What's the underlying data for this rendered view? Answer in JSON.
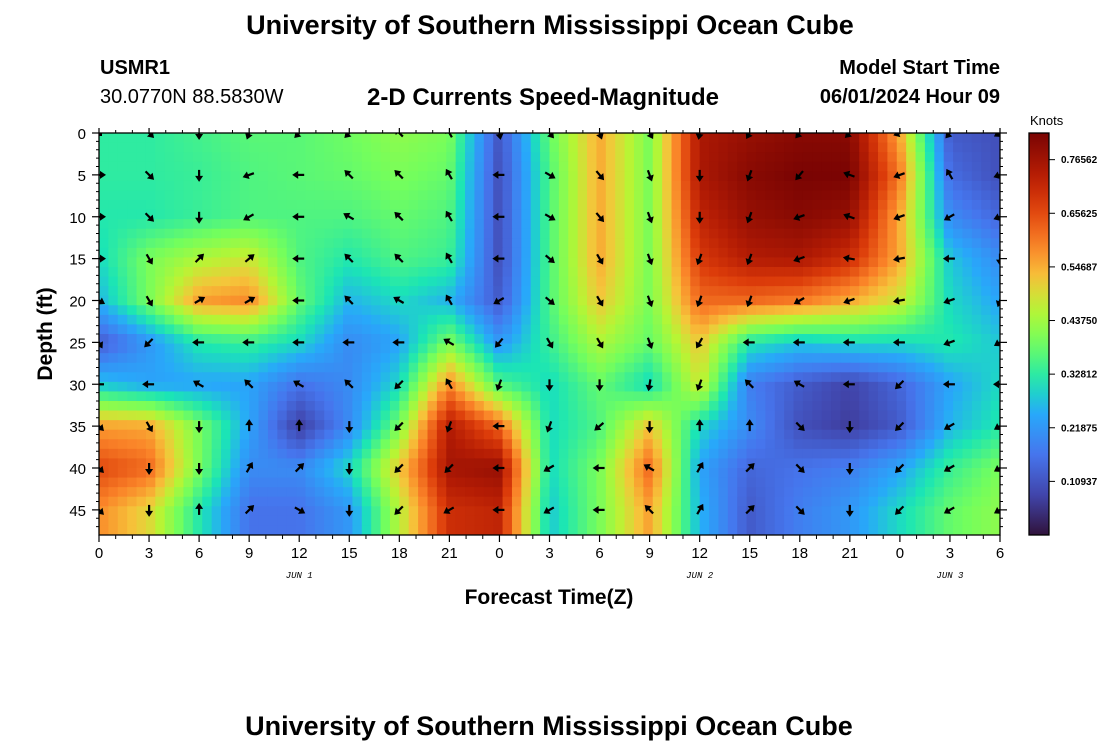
{
  "header": {
    "title": "University of Southern Mississippi Ocean Cube",
    "station_id": "USMR1",
    "coordinates": "30.0770N  88.5830W",
    "plot_title": "2-D Currents Speed-Magnitude",
    "model_start_label": "Model Start Time",
    "model_start_value": "06/01/2024 Hour 09"
  },
  "footer": {
    "title": "University of Southern Mississippi Ocean Cube"
  },
  "chart_data": {
    "type": "heatmap",
    "title": "2-D Currents Speed-Magnitude",
    "xlabel": "Forecast Time(Z)",
    "ylabel": "Depth (ft)",
    "x_hours": [
      0,
      3,
      6,
      9,
      12,
      15,
      18,
      21,
      24,
      27,
      30,
      33,
      36,
      39,
      42,
      45,
      48,
      51,
      54
    ],
    "x_tick_labels": [
      "0",
      "3",
      "6",
      "9",
      "12",
      "15",
      "18",
      "21",
      "0",
      "3",
      "6",
      "9",
      "12",
      "15",
      "18",
      "21",
      "0",
      "3",
      "6"
    ],
    "date_labels": [
      {
        "hour": 12,
        "label": "JUN 1"
      },
      {
        "hour": 36,
        "label": "JUN 2"
      },
      {
        "hour": 51,
        "label": "JUN 3"
      }
    ],
    "depths_ft": [
      0,
      5,
      10,
      15,
      20,
      25,
      30,
      35,
      40,
      45
    ],
    "ylim": [
      0,
      48
    ],
    "y_ticks": [
      0,
      5,
      10,
      15,
      20,
      25,
      30,
      35,
      40,
      45
    ],
    "colorbar": {
      "label": "Knots",
      "min": 0,
      "max": 0.82,
      "tick_values": [
        0.10937,
        0.21875,
        0.32812,
        0.4375,
        0.54687,
        0.65625,
        0.76562
      ],
      "tick_labels": [
        "0.10937",
        "0.21875",
        "0.32812",
        "0.43750",
        "0.54687",
        "0.65625",
        "0.76562"
      ]
    },
    "speed_knots": [
      [
        0.33,
        0.33,
        0.35,
        0.37,
        0.37,
        0.39,
        0.42,
        0.4,
        0.11,
        0.38,
        0.55,
        0.4,
        0.75,
        0.78,
        0.8,
        0.8,
        0.55,
        0.12,
        0.1
      ],
      [
        0.33,
        0.33,
        0.34,
        0.36,
        0.37,
        0.38,
        0.4,
        0.38,
        0.1,
        0.36,
        0.55,
        0.4,
        0.75,
        0.8,
        0.82,
        0.82,
        0.6,
        0.15,
        0.1
      ],
      [
        0.32,
        0.32,
        0.34,
        0.36,
        0.36,
        0.36,
        0.38,
        0.36,
        0.1,
        0.36,
        0.55,
        0.4,
        0.72,
        0.78,
        0.8,
        0.78,
        0.55,
        0.2,
        0.14
      ],
      [
        0.3,
        0.4,
        0.45,
        0.48,
        0.36,
        0.32,
        0.36,
        0.34,
        0.1,
        0.36,
        0.55,
        0.4,
        0.68,
        0.74,
        0.75,
        0.7,
        0.55,
        0.28,
        0.2
      ],
      [
        0.26,
        0.4,
        0.56,
        0.58,
        0.38,
        0.26,
        0.3,
        0.26,
        0.12,
        0.36,
        0.52,
        0.4,
        0.62,
        0.62,
        0.6,
        0.55,
        0.48,
        0.3,
        0.24
      ],
      [
        0.12,
        0.22,
        0.32,
        0.34,
        0.3,
        0.2,
        0.24,
        0.4,
        0.22,
        0.34,
        0.45,
        0.38,
        0.52,
        0.32,
        0.28,
        0.3,
        0.3,
        0.32,
        0.28
      ],
      [
        0.28,
        0.24,
        0.24,
        0.24,
        0.16,
        0.2,
        0.3,
        0.58,
        0.36,
        0.3,
        0.38,
        0.3,
        0.48,
        0.18,
        0.12,
        0.08,
        0.14,
        0.24,
        0.3
      ],
      [
        0.56,
        0.55,
        0.4,
        0.24,
        0.07,
        0.2,
        0.4,
        0.74,
        0.62,
        0.3,
        0.36,
        0.52,
        0.3,
        0.2,
        0.1,
        0.07,
        0.12,
        0.26,
        0.32
      ],
      [
        0.66,
        0.62,
        0.4,
        0.2,
        0.2,
        0.3,
        0.52,
        0.76,
        0.78,
        0.3,
        0.4,
        0.62,
        0.24,
        0.14,
        0.16,
        0.18,
        0.24,
        0.34,
        0.4
      ],
      [
        0.58,
        0.5,
        0.32,
        0.16,
        0.16,
        0.22,
        0.46,
        0.7,
        0.72,
        0.28,
        0.4,
        0.56,
        0.26,
        0.12,
        0.18,
        0.22,
        0.3,
        0.38,
        0.42
      ]
    ],
    "direction_deg": [
      [
        null,
        135,
        180,
        200,
        225,
        225,
        315,
        330,
        170,
        140,
        160,
        150,
        190,
        210,
        220,
        225,
        250,
        220,
        240
      ],
      [
        90,
        135,
        180,
        250,
        270,
        315,
        315,
        330,
        270,
        120,
        140,
        160,
        180,
        200,
        220,
        290,
        250,
        330,
        250
      ],
      [
        90,
        135,
        180,
        240,
        270,
        300,
        315,
        330,
        270,
        120,
        140,
        160,
        180,
        200,
        250,
        290,
        250,
        240,
        250
      ],
      [
        90,
        150,
        45,
        50,
        270,
        315,
        315,
        330,
        270,
        130,
        150,
        160,
        200,
        200,
        250,
        280,
        260,
        270,
        180
      ],
      [
        120,
        150,
        60,
        60,
        270,
        315,
        300,
        330,
        240,
        130,
        150,
        160,
        200,
        200,
        240,
        250,
        260,
        250,
        200
      ],
      [
        150,
        225,
        270,
        270,
        270,
        270,
        270,
        300,
        220,
        150,
        150,
        160,
        210,
        270,
        270,
        270,
        270,
        250,
        240
      ],
      [
        270,
        270,
        300,
        315,
        300,
        315,
        225,
        330,
        200,
        180,
        180,
        190,
        200,
        315,
        300,
        270,
        225,
        270,
        270
      ],
      [
        135,
        150,
        180,
        0,
        0,
        180,
        225,
        200,
        270,
        200,
        230,
        180,
        0,
        0,
        135,
        180,
        225,
        240,
        240
      ],
      [
        135,
        180,
        180,
        30,
        45,
        180,
        225,
        225,
        270,
        240,
        270,
        300,
        30,
        45,
        135,
        180,
        225,
        240,
        240
      ],
      [
        135,
        180,
        0,
        45,
        120,
        180,
        225,
        240,
        270,
        240,
        270,
        315,
        30,
        45,
        135,
        180,
        225,
        240,
        240
      ]
    ]
  }
}
